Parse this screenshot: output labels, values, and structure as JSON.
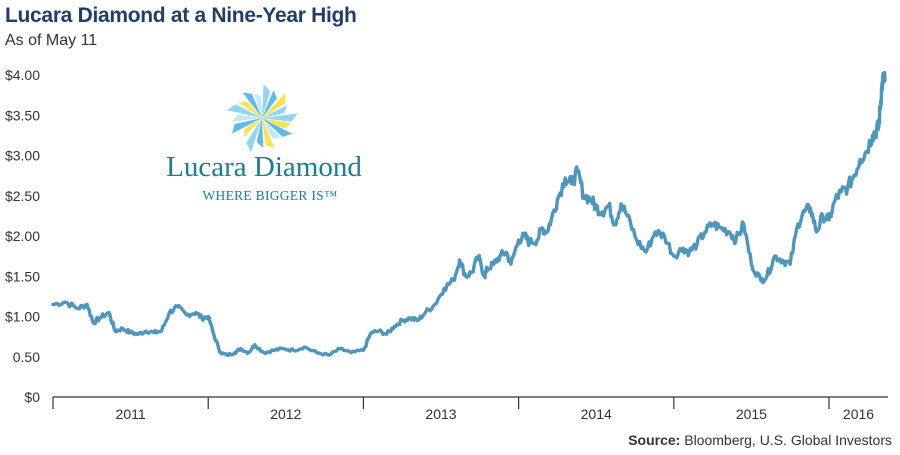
{
  "title": "Lucara Diamond at a Nine-Year High",
  "subtitle": "As of May 11",
  "source": {
    "label": "Source:",
    "text": " Bloomberg, U.S. Global Investors"
  },
  "logo": {
    "name": "Lucara Diamond",
    "tagline": "WHERE BIGGER IS™"
  },
  "colors": {
    "line": "#4f96bd",
    "title": "#1f3f66",
    "logo_text": "#1b7f92"
  },
  "chart_data": {
    "type": "line",
    "title": "Lucara Diamond at a Nine-Year High",
    "subtitle": "As of May 11",
    "xlabel": "",
    "ylabel": "",
    "ylim": [
      0,
      4
    ],
    "yticks": [
      0,
      0.5,
      1,
      1.5,
      2,
      2.5,
      3,
      3.5,
      4
    ],
    "ytick_labels": [
      "$0",
      "0.50",
      "$1.00",
      "$1.50",
      "$2.00",
      "$2.50",
      "$3.00",
      "$3.50",
      "$4.00"
    ],
    "xlim": [
      2011.0,
      2016.38
    ],
    "x_category_labels": [
      "2011",
      "2012",
      "2013",
      "2014",
      "2015",
      "2016"
    ],
    "x_category_centers": [
      2011.5,
      2012.5,
      2013.5,
      2014.5,
      2015.5,
      2016.19
    ],
    "x_boundaries": [
      2012,
      2013,
      2014,
      2015,
      2016
    ],
    "grid": false,
    "series": [
      {
        "x": [
          2011.0,
          2011.08,
          2011.16,
          2011.22,
          2011.26,
          2011.3,
          2011.36,
          2011.4,
          2011.45,
          2011.5,
          2011.55,
          2011.6,
          2011.65,
          2011.7,
          2011.75,
          2011.8,
          2011.86,
          2011.92,
          2011.96,
          2012.0,
          2012.04,
          2012.08,
          2012.12,
          2012.17,
          2012.21,
          2012.26,
          2012.3,
          2012.36,
          2012.42,
          2012.48,
          2012.55,
          2012.62,
          2012.7,
          2012.78,
          2012.85,
          2012.92,
          2013.0,
          2013.05,
          2013.1,
          2013.15,
          2013.2,
          2013.25,
          2013.3,
          2013.35,
          2013.4,
          2013.46,
          2013.52,
          2013.58,
          2013.62,
          2013.66,
          2013.7,
          2013.74,
          2013.78,
          2013.8,
          2013.84,
          2013.88,
          2013.92,
          2013.95,
          2014.0,
          2014.04,
          2014.07,
          2014.12,
          2014.15,
          2014.18,
          2014.21,
          2014.25,
          2014.3,
          2014.34,
          2014.38,
          2014.42,
          2014.47,
          2014.5,
          2014.54,
          2014.58,
          2014.62,
          2014.66,
          2014.7,
          2014.76,
          2014.82,
          2014.88,
          2014.94,
          2015.0,
          2015.06,
          2015.1,
          2015.15,
          2015.2,
          2015.25,
          2015.3,
          2015.36,
          2015.4,
          2015.45,
          2015.5,
          2015.56,
          2015.6,
          2015.65,
          2015.7,
          2015.75,
          2015.8,
          2015.84,
          2015.88,
          2015.92,
          2015.96,
          2016.0,
          2016.04,
          2016.08,
          2016.12,
          2016.16,
          2016.2,
          2016.24,
          2016.28,
          2016.3,
          2016.32,
          2016.33,
          2016.34,
          2016.35,
          2016.36
        ],
        "values": [
          1.15,
          1.18,
          1.1,
          1.15,
          0.92,
          0.98,
          1.05,
          0.82,
          0.85,
          0.8,
          0.78,
          0.82,
          0.8,
          0.82,
          1.05,
          1.12,
          1.02,
          1.05,
          0.98,
          1.0,
          0.75,
          0.55,
          0.52,
          0.55,
          0.6,
          0.55,
          0.65,
          0.55,
          0.58,
          0.6,
          0.58,
          0.62,
          0.55,
          0.52,
          0.6,
          0.55,
          0.58,
          0.8,
          0.82,
          0.78,
          0.88,
          0.95,
          0.98,
          0.95,
          1.05,
          1.15,
          1.35,
          1.45,
          1.7,
          1.5,
          1.55,
          1.75,
          1.5,
          1.6,
          1.65,
          1.75,
          1.8,
          1.65,
          1.95,
          2.0,
          1.92,
          1.95,
          2.1,
          2.05,
          2.2,
          2.45,
          2.72,
          2.65,
          2.8,
          2.5,
          2.45,
          2.35,
          2.3,
          2.38,
          2.15,
          2.4,
          2.25,
          1.95,
          1.8,
          2.05,
          2.0,
          1.75,
          1.85,
          1.8,
          1.9,
          2.05,
          2.15,
          2.1,
          2.05,
          1.95,
          2.15,
          1.65,
          1.45,
          1.5,
          1.75,
          1.7,
          1.65,
          2.15,
          2.3,
          2.35,
          2.05,
          2.25,
          2.2,
          2.45,
          2.55,
          2.6,
          2.75,
          2.95,
          3.05,
          3.25,
          3.3,
          3.35,
          3.6,
          3.85,
          3.95,
          3.93
        ]
      }
    ]
  }
}
